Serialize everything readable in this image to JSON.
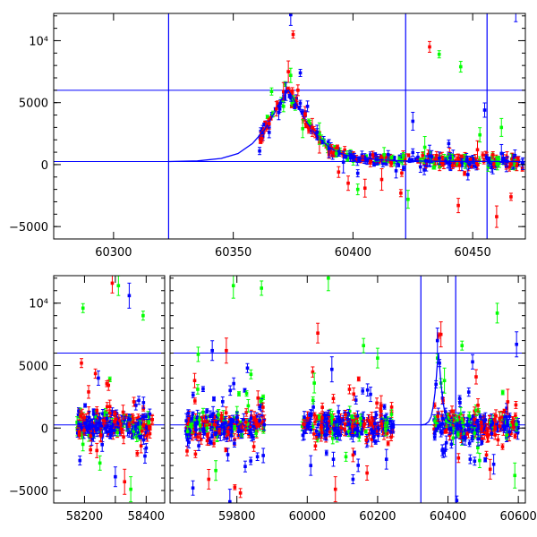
{
  "colors": {
    "frame": "#000000",
    "model": "#0000ff",
    "series_red": "#ff0000",
    "series_green": "#00ff00",
    "series_blue": "#0000ff"
  },
  "chart_data": [
    {
      "type": "scatter",
      "panel": "top",
      "xlim": [
        60275,
        60472
      ],
      "ylim": [
        -6000,
        12200
      ],
      "xticks": [
        60300,
        60350,
        60400,
        60450
      ],
      "xtick_labels": [
        "60300",
        "60350",
        "60400",
        "60450"
      ],
      "yticks": [
        -5000,
        0,
        5000,
        10000
      ],
      "ytick_labels": [
        "−5000",
        "0",
        "5000",
        "10⁴"
      ],
      "hlines": [
        250,
        6000
      ],
      "vlines": [
        60323,
        60422,
        60456
      ],
      "model_curve": {
        "color": "#0000ff",
        "x": [
          60323,
          60335,
          60345,
          60352,
          60358,
          60363,
          60367,
          60370,
          60373,
          60376,
          60380,
          60385,
          60390,
          60395,
          60400,
          60410,
          60420,
          60440,
          60472
        ],
        "y": [
          250,
          300,
          500,
          900,
          1700,
          2800,
          4100,
          5200,
          6000,
          5000,
          3600,
          2300,
          1400,
          900,
          600,
          400,
          310,
          260,
          250
        ]
      },
      "series": [
        {
          "color": "#ff0000",
          "x": [
            60362,
            60365,
            60368,
            60371,
            60373,
            60375,
            60377,
            60380,
            60383,
            60386,
            60390,
            60394,
            60398,
            60405,
            60412,
            60420,
            60432,
            60444,
            60452,
            60460,
            60466
          ],
          "y": [
            2100,
            3300,
            4500,
            5900,
            7500,
            10500,
            6000,
            4100,
            3000,
            1800,
            800,
            -600,
            -1500,
            -1900,
            -1200,
            -2300,
            9500,
            -3300,
            1200,
            -4200,
            -2600
          ]
        },
        {
          "color": "#00ff00",
          "x": [
            60366,
            60371,
            60374,
            60379,
            60386,
            60393,
            60402,
            60413,
            60423,
            60430,
            60436,
            60445,
            60453,
            60462
          ],
          "y": [
            5900,
            4700,
            7200,
            2900,
            2500,
            900,
            -2000,
            800,
            -2800,
            1400,
            8900,
            7900,
            2400,
            3000
          ]
        },
        {
          "color": "#0000ff",
          "x": [
            60361,
            60365,
            60369,
            60372,
            60374,
            60378,
            60381,
            60385,
            60390,
            60396,
            60402,
            60410,
            60418,
            60425,
            60432,
            60440,
            60448,
            60455,
            60462,
            60468
          ],
          "y": [
            1100,
            2600,
            4200,
            5900,
            12100,
            7400,
            4700,
            2600,
            1300,
            200,
            -700,
            400,
            -500,
            3500,
            700,
            1700,
            -800,
            4400,
            900,
            12400
          ]
        }
      ]
    },
    {
      "type": "scatter",
      "panel": "bottom",
      "xlim": [
        58100,
        60620
      ],
      "ylim": [
        -6000,
        12200
      ],
      "xticks": [
        58200,
        58300,
        58400,
        59800,
        60000,
        60200,
        60400,
        60600
      ],
      "xtick_labels": [
        "58200",
        "",
        "58400",
        "59800",
        "60000",
        "60200",
        "60400",
        "60600"
      ],
      "yticks": [
        -5000,
        0,
        5000,
        10000
      ],
      "ytick_labels": [
        "−5000",
        "0",
        "5000",
        "10⁴"
      ],
      "hlines": [
        250,
        6000
      ],
      "vlines": [
        60323,
        60422
      ],
      "segments": [
        {
          "xrange": [
            58100,
            58460
          ]
        },
        {
          "xrange": [
            59610,
            60620
          ]
        }
      ],
      "clusters": [
        {
          "xrange": [
            58175,
            58420
          ]
        },
        {
          "xrange": [
            59655,
            59880
          ]
        },
        {
          "xrange": [
            59985,
            60245
          ]
        },
        {
          "xrange": [
            60360,
            60600
          ]
        }
      ],
      "series": [
        {
          "color": "#ff0000",
          "x": [
            58190,
            58240,
            58290,
            58330,
            58360,
            59680,
            59720,
            59770,
            59810,
            59860,
            60030,
            60080,
            60120,
            60170,
            60210,
            60380,
            60430,
            60480,
            60520,
            60570
          ],
          "y": [
            5200,
            -1800,
            11600,
            -4300,
            2100,
            3800,
            -4100,
            6200,
            -5200,
            2400,
            7600,
            -4900,
            3100,
            -3600,
            1800,
            7500,
            -2400,
            4100,
            -3300,
            2100
          ]
        },
        {
          "color": "#00ff00",
          "x": [
            58195,
            58250,
            58310,
            58350,
            58390,
            59690,
            59740,
            59790,
            59840,
            59870,
            60020,
            60060,
            60110,
            60160,
            60200,
            60390,
            60440,
            60490,
            60540,
            60590
          ],
          "y": [
            9600,
            -2800,
            11400,
            -4900,
            9000,
            5900,
            -3400,
            11400,
            4300,
            11200,
            3600,
            12000,
            -2300,
            6600,
            5600,
            3800,
            6600,
            -2600,
            9200,
            -3800
          ]
        },
        {
          "color": "#0000ff",
          "x": [
            58185,
            58245,
            58300,
            58345,
            58400,
            59675,
            59730,
            59780,
            59830,
            59875,
            60010,
            60070,
            60130,
            60180,
            60225,
            60370,
            60425,
            60470,
            60530,
            60595
          ],
          "y": [
            -2600,
            4000,
            -3900,
            10600,
            -1600,
            -4800,
            6200,
            -5900,
            4800,
            -2200,
            -3000,
            4700,
            -4100,
            2700,
            -2500,
            7000,
            -5800,
            5300,
            -2900,
            6700
          ]
        }
      ]
    }
  ]
}
